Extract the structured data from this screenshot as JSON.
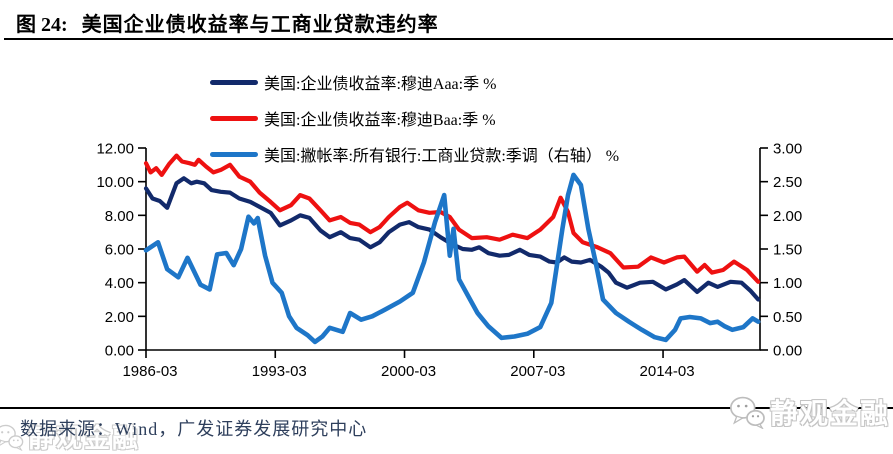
{
  "header": {
    "figure_label": "图 24:",
    "title": "美国企业债收益率与工商业贷款违约率"
  },
  "footer": {
    "source": "数据来源：Wind，广发证券发展研究中心",
    "logo_text": "静观金融"
  },
  "chart_data": {
    "type": "line",
    "title": "美国企业债收益率与工商业贷款违约率",
    "x_range": [
      1986.25,
      2019.5
    ],
    "x_tick_years": [
      1986.25,
      1993.25,
      2000.25,
      2007.25,
      2014.25
    ],
    "x_tick_labels": [
      "1986-03",
      "1993-03",
      "2000-03",
      "2007-03",
      "2014-03"
    ],
    "left_axis": {
      "range": [
        0,
        12
      ],
      "ticks": [
        "12.00",
        "10.00",
        "8.00",
        "6.00",
        "4.00",
        "2.00",
        "0.00"
      ]
    },
    "right_axis": {
      "range": [
        0,
        3
      ],
      "ticks": [
        "3.00",
        "2.50",
        "2.00",
        "1.50",
        "1.00",
        "0.50",
        "0.00"
      ]
    },
    "grid": false,
    "legend_position": "top",
    "series": [
      {
        "name": "美国:企业债收益率:穆迪Aaa:季 %",
        "axis": "left",
        "color": "#122a6b",
        "points": [
          [
            1986.25,
            9.6
          ],
          [
            1986.6,
            9.0
          ],
          [
            1987.0,
            8.85
          ],
          [
            1987.4,
            8.45
          ],
          [
            1987.9,
            9.9
          ],
          [
            1988.3,
            10.2
          ],
          [
            1988.7,
            9.9
          ],
          [
            1989.0,
            10.0
          ],
          [
            1989.4,
            9.9
          ],
          [
            1989.8,
            9.5
          ],
          [
            1990.3,
            9.4
          ],
          [
            1990.8,
            9.35
          ],
          [
            1991.3,
            9.0
          ],
          [
            1991.9,
            8.8
          ],
          [
            1992.4,
            8.5
          ],
          [
            1993.0,
            8.15
          ],
          [
            1993.5,
            7.4
          ],
          [
            1994.1,
            7.7
          ],
          [
            1994.6,
            8.0
          ],
          [
            1995.1,
            7.85
          ],
          [
            1995.7,
            7.1
          ],
          [
            1996.2,
            6.7
          ],
          [
            1996.8,
            7.0
          ],
          [
            1997.3,
            6.65
          ],
          [
            1997.8,
            6.55
          ],
          [
            1998.4,
            6.1
          ],
          [
            1998.9,
            6.4
          ],
          [
            1999.4,
            7.0
          ],
          [
            2000.0,
            7.45
          ],
          [
            2000.5,
            7.6
          ],
          [
            2001.0,
            7.3
          ],
          [
            2001.6,
            7.15
          ],
          [
            2002.2,
            6.7
          ],
          [
            2002.8,
            6.3
          ],
          [
            2003.4,
            6.0
          ],
          [
            2003.9,
            5.95
          ],
          [
            2004.3,
            6.1
          ],
          [
            2004.8,
            5.75
          ],
          [
            2005.4,
            5.6
          ],
          [
            2005.9,
            5.65
          ],
          [
            2006.5,
            5.95
          ],
          [
            2007.0,
            5.65
          ],
          [
            2007.6,
            5.55
          ],
          [
            2008.1,
            5.25
          ],
          [
            2008.5,
            5.2
          ],
          [
            2008.9,
            5.5
          ],
          [
            2009.3,
            5.25
          ],
          [
            2009.8,
            5.2
          ],
          [
            2010.3,
            5.35
          ],
          [
            2010.9,
            4.95
          ],
          [
            2011.3,
            4.6
          ],
          [
            2011.7,
            4.0
          ],
          [
            2012.3,
            3.7
          ],
          [
            2013.0,
            4.0
          ],
          [
            2013.7,
            4.05
          ],
          [
            2014.4,
            3.6
          ],
          [
            2015.0,
            3.9
          ],
          [
            2015.4,
            4.15
          ],
          [
            2016.1,
            3.45
          ],
          [
            2016.7,
            4.0
          ],
          [
            2017.2,
            3.75
          ],
          [
            2017.9,
            4.05
          ],
          [
            2018.5,
            4.0
          ],
          [
            2019.0,
            3.5
          ],
          [
            2019.4,
            3.0
          ]
        ]
      },
      {
        "name": "美国:企业债收益率:穆迪Baa:季 %",
        "axis": "left",
        "color": "#ee1111",
        "points": [
          [
            1986.25,
            11.1
          ],
          [
            1986.5,
            10.55
          ],
          [
            1986.8,
            10.8
          ],
          [
            1987.1,
            10.4
          ],
          [
            1987.5,
            11.05
          ],
          [
            1987.9,
            11.55
          ],
          [
            1988.2,
            11.2
          ],
          [
            1988.6,
            11.1
          ],
          [
            1988.9,
            11.0
          ],
          [
            1989.1,
            11.3
          ],
          [
            1989.5,
            10.9
          ],
          [
            1989.9,
            10.55
          ],
          [
            1990.3,
            10.7
          ],
          [
            1990.8,
            11.0
          ],
          [
            1991.3,
            10.3
          ],
          [
            1991.9,
            10.0
          ],
          [
            1992.4,
            9.35
          ],
          [
            1993.0,
            8.8
          ],
          [
            1993.5,
            8.3
          ],
          [
            1994.1,
            8.6
          ],
          [
            1994.6,
            9.2
          ],
          [
            1995.1,
            9.0
          ],
          [
            1995.7,
            8.3
          ],
          [
            1996.2,
            7.7
          ],
          [
            1996.8,
            7.9
          ],
          [
            1997.3,
            7.55
          ],
          [
            1997.8,
            7.45
          ],
          [
            1998.4,
            7.0
          ],
          [
            1998.9,
            7.3
          ],
          [
            1999.4,
            7.9
          ],
          [
            2000.0,
            8.5
          ],
          [
            2000.4,
            8.75
          ],
          [
            2001.0,
            8.3
          ],
          [
            2001.6,
            8.15
          ],
          [
            2002.2,
            8.2
          ],
          [
            2002.7,
            7.9
          ],
          [
            2003.2,
            7.15
          ],
          [
            2003.9,
            6.65
          ],
          [
            2004.7,
            6.7
          ],
          [
            2005.4,
            6.55
          ],
          [
            2006.1,
            6.85
          ],
          [
            2006.9,
            6.65
          ],
          [
            2007.6,
            7.15
          ],
          [
            2008.3,
            7.9
          ],
          [
            2008.7,
            9.05
          ],
          [
            2009.1,
            8.2
          ],
          [
            2009.4,
            6.95
          ],
          [
            2009.9,
            6.4
          ],
          [
            2010.7,
            6.1
          ],
          [
            2011.4,
            5.75
          ],
          [
            2012.1,
            4.9
          ],
          [
            2012.9,
            4.95
          ],
          [
            2013.6,
            5.5
          ],
          [
            2014.3,
            5.2
          ],
          [
            2015.0,
            5.5
          ],
          [
            2015.4,
            5.55
          ],
          [
            2016.1,
            4.65
          ],
          [
            2016.5,
            5.05
          ],
          [
            2016.9,
            4.6
          ],
          [
            2017.5,
            4.75
          ],
          [
            2018.1,
            5.25
          ],
          [
            2018.8,
            4.75
          ],
          [
            2019.4,
            4.05
          ]
        ]
      },
      {
        "name": "美国:撇帐率:所有银行:工商业贷款:季调（右轴） %",
        "axis": "right",
        "color": "#1e76c8",
        "points": [
          [
            1986.25,
            1.48
          ],
          [
            1986.9,
            1.6
          ],
          [
            1987.4,
            1.2
          ],
          [
            1988.0,
            1.08
          ],
          [
            1988.5,
            1.37
          ],
          [
            1989.2,
            0.97
          ],
          [
            1989.7,
            0.9
          ],
          [
            1990.1,
            1.42
          ],
          [
            1990.6,
            1.44
          ],
          [
            1991.0,
            1.26
          ],
          [
            1991.4,
            1.5
          ],
          [
            1991.8,
            1.98
          ],
          [
            1992.1,
            1.88
          ],
          [
            1992.3,
            1.96
          ],
          [
            1992.7,
            1.4
          ],
          [
            1993.1,
            1.0
          ],
          [
            1993.6,
            0.85
          ],
          [
            1994.0,
            0.5
          ],
          [
            1994.4,
            0.33
          ],
          [
            1995.0,
            0.22
          ],
          [
            1995.4,
            0.12
          ],
          [
            1995.8,
            0.2
          ],
          [
            1996.2,
            0.33
          ],
          [
            1996.9,
            0.27
          ],
          [
            1997.3,
            0.55
          ],
          [
            1997.9,
            0.45
          ],
          [
            1998.5,
            0.5
          ],
          [
            1999.2,
            0.6
          ],
          [
            2000.0,
            0.72
          ],
          [
            2000.7,
            0.85
          ],
          [
            2001.3,
            1.3
          ],
          [
            2001.9,
            1.9
          ],
          [
            2002.4,
            2.3
          ],
          [
            2002.7,
            1.4
          ],
          [
            2002.9,
            1.8
          ],
          [
            2003.2,
            1.05
          ],
          [
            2003.7,
            0.8
          ],
          [
            2004.2,
            0.55
          ],
          [
            2004.8,
            0.35
          ],
          [
            2005.5,
            0.18
          ],
          [
            2006.2,
            0.2
          ],
          [
            2006.9,
            0.24
          ],
          [
            2007.6,
            0.34
          ],
          [
            2008.2,
            0.7
          ],
          [
            2008.8,
            1.8
          ],
          [
            2009.1,
            2.3
          ],
          [
            2009.4,
            2.6
          ],
          [
            2009.8,
            2.45
          ],
          [
            2010.2,
            1.8
          ],
          [
            2010.6,
            1.3
          ],
          [
            2011.0,
            0.75
          ],
          [
            2011.7,
            0.55
          ],
          [
            2012.4,
            0.42
          ],
          [
            2013.1,
            0.3
          ],
          [
            2013.8,
            0.19
          ],
          [
            2014.4,
            0.15
          ],
          [
            2014.9,
            0.3
          ],
          [
            2015.2,
            0.47
          ],
          [
            2015.7,
            0.49
          ],
          [
            2016.3,
            0.47
          ],
          [
            2016.8,
            0.4
          ],
          [
            2017.2,
            0.42
          ],
          [
            2017.6,
            0.35
          ],
          [
            2018.0,
            0.3
          ],
          [
            2018.6,
            0.34
          ],
          [
            2019.1,
            0.47
          ],
          [
            2019.4,
            0.42
          ]
        ]
      }
    ]
  }
}
